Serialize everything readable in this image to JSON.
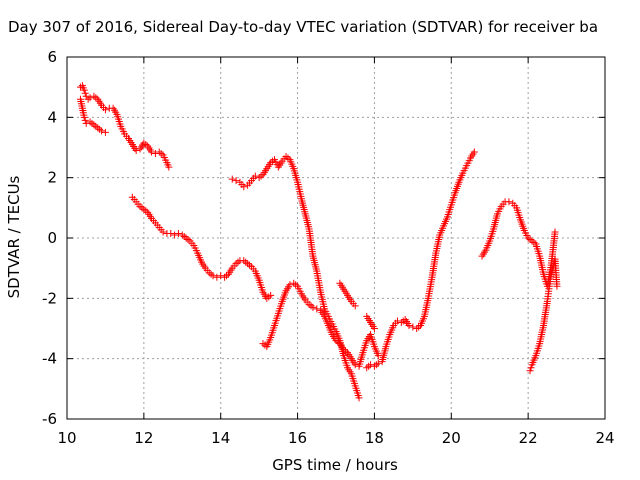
{
  "chart_data": {
    "type": "scatter",
    "title": "Day 307 of 2016, Sidereal Day-to-day VTEC variation (SDTVAR) for receiver ba",
    "xlabel": "GPS time / hours",
    "ylabel": "SDTVAR / TECUs",
    "xlim": [
      10,
      24
    ],
    "ylim": [
      -6,
      6
    ],
    "xticks": [
      10,
      12,
      14,
      16,
      18,
      20,
      22,
      24
    ],
    "yticks": [
      -6,
      -4,
      -2,
      0,
      2,
      4,
      6
    ],
    "grid": true,
    "marker": "+",
    "color": "#ff0000",
    "series": [
      {
        "x": [
          10.35,
          10.4,
          10.45,
          10.5,
          10.55,
          10.6,
          10.7,
          10.8,
          10.9,
          11.0,
          11.1,
          11.2,
          11.3,
          11.4,
          11.5,
          11.6,
          11.7,
          11.8,
          11.9,
          12.0,
          12.1,
          12.2,
          12.3,
          12.4,
          12.5,
          12.6,
          12.65
        ],
        "y": [
          5.0,
          5.05,
          4.9,
          4.7,
          4.6,
          4.65,
          4.7,
          4.6,
          4.4,
          4.25,
          4.3,
          4.3,
          4.1,
          3.7,
          3.45,
          3.3,
          3.1,
          2.9,
          2.95,
          3.15,
          3.05,
          2.85,
          2.8,
          2.85,
          2.75,
          2.5,
          2.35
        ]
      },
      {
        "x": [
          10.35,
          10.4,
          10.45,
          10.5,
          10.6,
          10.7,
          10.8,
          10.9,
          11.0
        ],
        "y": [
          4.6,
          4.3,
          4.0,
          3.8,
          3.85,
          3.75,
          3.65,
          3.55,
          3.5
        ]
      },
      {
        "x": [
          11.7,
          11.8,
          11.9,
          12.0,
          12.1,
          12.2,
          12.3,
          12.4,
          12.5,
          12.6,
          12.7,
          12.8,
          12.9,
          13.0,
          13.1,
          13.2,
          13.3,
          13.4,
          13.5,
          13.6,
          13.7,
          13.8,
          13.9,
          14.0,
          14.1,
          14.2,
          14.3,
          14.4,
          14.5,
          14.6,
          14.7,
          14.8,
          14.9,
          15.0,
          15.1,
          15.2,
          15.3
        ],
        "y": [
          1.35,
          1.2,
          1.05,
          0.95,
          0.85,
          0.65,
          0.5,
          0.35,
          0.2,
          0.15,
          0.15,
          0.1,
          0.15,
          0.1,
          0.0,
          -0.1,
          -0.25,
          -0.5,
          -0.8,
          -1.0,
          -1.15,
          -1.25,
          -1.3,
          -1.25,
          -1.3,
          -1.2,
          -1.0,
          -0.85,
          -0.75,
          -0.75,
          -0.85,
          -0.95,
          -1.1,
          -1.4,
          -1.8,
          -2.0,
          -1.9
        ]
      },
      {
        "x": [
          14.3,
          14.4,
          14.5,
          14.6,
          14.7,
          14.8,
          14.9,
          15.0,
          15.1,
          15.2,
          15.3,
          15.4,
          15.5,
          15.6,
          15.7,
          15.8,
          15.9,
          16.0,
          16.1,
          16.2,
          16.3,
          16.4,
          16.5,
          16.6,
          16.7,
          16.8,
          16.9,
          17.0,
          17.1,
          17.2,
          17.3,
          17.4,
          17.5,
          17.6
        ],
        "y": [
          1.95,
          1.9,
          1.85,
          1.7,
          1.75,
          1.9,
          2.05,
          2.0,
          2.1,
          2.3,
          2.5,
          2.6,
          2.35,
          2.55,
          2.7,
          2.6,
          2.3,
          1.85,
          1.3,
          0.8,
          0.3,
          -0.6,
          -1.1,
          -1.8,
          -2.35,
          -2.6,
          -2.85,
          -3.1,
          -3.4,
          -3.9,
          -4.3,
          -4.5,
          -4.9,
          -5.3
        ]
      },
      {
        "x": [
          15.1,
          15.2,
          15.3,
          15.4,
          15.5,
          15.6,
          15.7,
          15.8,
          15.9,
          16.0,
          16.1,
          16.2,
          16.3,
          16.4,
          16.5,
          16.6,
          16.7,
          16.8,
          16.9,
          17.0,
          17.1,
          17.2,
          17.3,
          17.4,
          17.5,
          17.6,
          17.7,
          17.8,
          17.9,
          18.0,
          18.1
        ],
        "y": [
          -3.5,
          -3.6,
          -3.3,
          -2.9,
          -2.5,
          -2.1,
          -1.75,
          -1.55,
          -1.5,
          -1.6,
          -1.85,
          -2.05,
          -2.2,
          -2.3,
          -2.35,
          -2.4,
          -2.6,
          -2.9,
          -3.2,
          -3.4,
          -3.5,
          -3.7,
          -3.8,
          -4.0,
          -4.2,
          -4.25,
          -3.8,
          -3.4,
          -3.2,
          -3.6,
          -3.9
        ]
      },
      {
        "x": [
          17.1,
          17.2,
          17.3,
          17.4,
          17.5
        ],
        "y": [
          -1.5,
          -1.7,
          -1.9,
          -2.1,
          -2.25
        ]
      },
      {
        "x": [
          17.8,
          17.9,
          18.0,
          18.1,
          18.2,
          18.3,
          18.4,
          18.5,
          18.6,
          18.7,
          18.8,
          18.9,
          19.0,
          19.1,
          19.2,
          19.3,
          19.4,
          19.5,
          19.6,
          19.7,
          19.8,
          19.9,
          20.0,
          20.1,
          20.2,
          20.3,
          20.4,
          20.5,
          20.6
        ],
        "y": [
          -4.3,
          -4.2,
          -4.25,
          -4.15,
          -4.1,
          -3.6,
          -3.2,
          -2.9,
          -2.75,
          -2.8,
          -2.7,
          -2.9,
          -2.95,
          -3.0,
          -2.9,
          -2.6,
          -2.0,
          -1.3,
          -0.5,
          0.1,
          0.4,
          0.7,
          1.1,
          1.5,
          1.85,
          2.15,
          2.4,
          2.65,
          2.85
        ]
      },
      {
        "x": [
          17.8,
          17.9,
          18.0
        ],
        "y": [
          -2.6,
          -2.8,
          -3.0
        ]
      },
      {
        "x": [
          20.8,
          20.9,
          21.0,
          21.1,
          21.2,
          21.3,
          21.4,
          21.5,
          21.6,
          21.7,
          21.8,
          21.9,
          22.0,
          22.1,
          22.2,
          22.3,
          22.4,
          22.5,
          22.6,
          22.7
        ],
        "y": [
          -0.6,
          -0.4,
          -0.1,
          0.3,
          0.8,
          1.05,
          1.2,
          1.2,
          1.15,
          1.0,
          0.6,
          0.25,
          0.0,
          -0.1,
          -0.2,
          -0.6,
          -1.2,
          -1.6,
          -0.9,
          0.2
        ]
      },
      {
        "x": [
          22.05,
          22.1,
          22.2,
          22.3,
          22.4,
          22.5,
          22.55,
          22.6,
          22.7,
          22.75
        ],
        "y": [
          -4.4,
          -4.2,
          -3.9,
          -3.5,
          -2.9,
          -2.1,
          -1.6,
          -1.2,
          -0.7,
          -1.6
        ]
      }
    ]
  }
}
